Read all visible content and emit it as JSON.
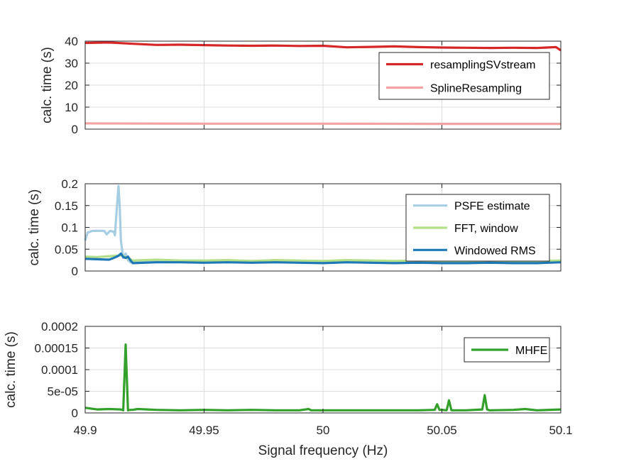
{
  "chart_data": [
    {
      "type": "line",
      "ylabel": "calc. time (s)",
      "xlim": [
        49.9,
        50.1
      ],
      "ylim": [
        0,
        40
      ],
      "yticks": [
        "0",
        "10",
        "20",
        "30",
        "40"
      ],
      "ytick_values": [
        0,
        10,
        20,
        30,
        40
      ],
      "grid": true,
      "legend_position": "top-right",
      "series": [
        {
          "name": "resamplingSVstream",
          "color": "#d62728",
          "x": [
            49.9,
            49.91,
            49.92,
            49.93,
            49.94,
            49.95,
            49.96,
            49.97,
            49.98,
            49.99,
            50.0,
            50.01,
            50.02,
            50.03,
            50.04,
            50.05,
            50.06,
            50.07,
            50.08,
            50.09,
            50.098,
            50.1
          ],
          "values": [
            39.2,
            39.4,
            38.8,
            38.3,
            38.4,
            38.2,
            38.0,
            37.9,
            38.0,
            37.8,
            37.9,
            37.2,
            37.4,
            37.6,
            37.3,
            37.1,
            37.0,
            36.9,
            37.0,
            36.9,
            37.3,
            35.8
          ]
        },
        {
          "name": "SplineResampling",
          "color": "#f4a3a3",
          "x": [
            49.9,
            49.95,
            50.0,
            50.05,
            50.1
          ],
          "values": [
            2.6,
            2.5,
            2.5,
            2.4,
            2.4
          ]
        }
      ]
    },
    {
      "type": "line",
      "ylabel": "calc. time (s)",
      "xlim": [
        49.9,
        50.1
      ],
      "ylim": [
        0,
        0.2
      ],
      "yticks": [
        "0",
        "0.05",
        "0.1",
        "0.15",
        "0.2"
      ],
      "ytick_values": [
        0,
        0.05,
        0.1,
        0.15,
        0.2
      ],
      "grid": true,
      "legend_position": "top-right",
      "series": [
        {
          "name": "PSFE estimate",
          "color": "#a6cee3",
          "x": [
            49.9,
            49.901,
            49.903,
            49.908,
            49.909,
            49.9105,
            49.912,
            49.9125,
            49.913,
            49.914,
            49.9145,
            49.915,
            49.9155,
            49.916,
            49.917,
            49.918,
            49.919,
            49.92,
            49.93,
            49.94,
            49.95,
            49.96,
            49.97,
            49.98,
            49.99,
            50.0,
            50.01,
            50.02,
            50.03,
            50.04,
            50.05,
            50.06,
            50.07,
            50.08,
            50.09,
            50.1
          ],
          "values": [
            0.07,
            0.088,
            0.092,
            0.092,
            0.084,
            0.092,
            0.09,
            0.082,
            0.12,
            0.195,
            0.15,
            0.07,
            0.05,
            0.03,
            0.04,
            0.025,
            0.02,
            0.022,
            0.024,
            0.023,
            0.021,
            0.023,
            0.021,
            0.022,
            0.021,
            0.02,
            0.024,
            0.021,
            0.02,
            0.022,
            0.021,
            0.02,
            0.022,
            0.021,
            0.02,
            0.023
          ]
        },
        {
          "name": "FFT, window",
          "color": "#b2df8a",
          "x": [
            49.9,
            49.905,
            49.91,
            49.915,
            49.918,
            49.92,
            49.93,
            49.94,
            49.95,
            49.96,
            49.97,
            49.98,
            49.99,
            50.0,
            50.01,
            50.02,
            50.03,
            50.04,
            50.05,
            50.06,
            50.07,
            50.08,
            50.09,
            50.1
          ],
          "values": [
            0.033,
            0.032,
            0.034,
            0.036,
            0.03,
            0.024,
            0.026,
            0.024,
            0.024,
            0.025,
            0.023,
            0.025,
            0.024,
            0.023,
            0.025,
            0.024,
            0.023,
            0.024,
            0.023,
            0.022,
            0.024,
            0.023,
            0.023,
            0.024
          ]
        },
        {
          "name": "Windowed RMS",
          "color": "#1f78b4",
          "x": [
            49.9,
            49.905,
            49.91,
            49.912,
            49.914,
            49.915,
            49.916,
            49.917,
            49.918,
            49.919,
            49.92,
            49.93,
            49.94,
            49.95,
            49.96,
            49.97,
            49.98,
            49.99,
            50.0,
            50.01,
            50.02,
            50.03,
            50.04,
            50.05,
            50.06,
            50.07,
            50.08,
            50.09,
            50.1
          ],
          "values": [
            0.028,
            0.027,
            0.026,
            0.03,
            0.035,
            0.04,
            0.032,
            0.03,
            0.033,
            0.025,
            0.018,
            0.02,
            0.02,
            0.019,
            0.02,
            0.019,
            0.02,
            0.019,
            0.018,
            0.02,
            0.019,
            0.018,
            0.019,
            0.018,
            0.018,
            0.019,
            0.018,
            0.018,
            0.02
          ]
        }
      ]
    },
    {
      "type": "line",
      "ylabel": "calc. time (s)",
      "xlabel": "Signal frequency (Hz)",
      "xlim": [
        49.9,
        50.1
      ],
      "xticks": [
        "49.9",
        "49.95",
        "50",
        "50.05",
        "50.1"
      ],
      "xtick_values": [
        49.9,
        49.95,
        50.0,
        50.05,
        50.1
      ],
      "ylim": [
        0,
        0.0002
      ],
      "yticks": [
        "0",
        "5e-05",
        "0.0001",
        "0.00015",
        "0.0002"
      ],
      "ytick_values": [
        0,
        5e-05,
        0.0001,
        0.00015,
        0.0002
      ],
      "grid": true,
      "legend_position": "top-right",
      "series": [
        {
          "name": "MHFE",
          "color": "#33a02c",
          "x": [
            49.9,
            49.905,
            49.91,
            49.915,
            49.916,
            49.917,
            49.918,
            49.919,
            49.92,
            49.922,
            49.93,
            49.94,
            49.95,
            49.96,
            49.97,
            49.98,
            49.99,
            49.994,
            49.995,
            50.0,
            50.01,
            50.02,
            50.03,
            50.04,
            50.047,
            50.048,
            50.049,
            50.05,
            50.052,
            50.053,
            50.054,
            50.06,
            50.067,
            50.068,
            50.069,
            50.07,
            50.08,
            50.085,
            50.09,
            50.1
          ],
          "values": [
            1.2e-05,
            8e-06,
            9e-06,
            8e-06,
            6e-06,
            0.000158,
            6e-06,
            7e-06,
            7e-06,
            9e-06,
            7e-06,
            6e-06,
            7e-06,
            6e-06,
            7e-06,
            6e-06,
            6e-06,
            9e-06,
            6e-06,
            6e-06,
            6e-06,
            6e-06,
            6e-06,
            6e-06,
            7e-06,
            2e-05,
            7e-06,
            7e-06,
            6e-06,
            2.9e-05,
            6e-06,
            6e-06,
            8e-06,
            4.1e-05,
            8e-06,
            6e-06,
            7e-06,
            9e-06,
            6e-06,
            8e-06
          ]
        }
      ]
    }
  ]
}
